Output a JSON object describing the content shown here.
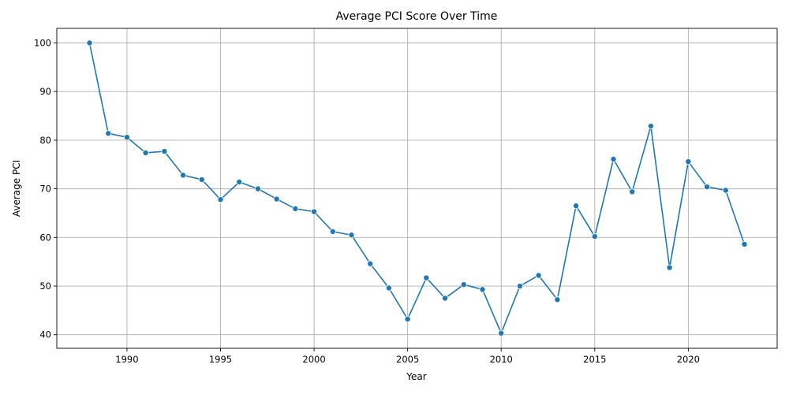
{
  "chart_data": {
    "type": "line",
    "title": "Average PCI Score Over Time",
    "xlabel": "Year",
    "ylabel": "Average PCI",
    "xlim": [
      1986.25,
      2024.75
    ],
    "ylim": [
      37.2,
      103.0
    ],
    "xticks": [
      1990,
      1995,
      2000,
      2005,
      2010,
      2015,
      2020
    ],
    "yticks": [
      40,
      50,
      60,
      70,
      80,
      90,
      100
    ],
    "grid": true,
    "legend": "none",
    "colors": {
      "line": "#1f77b4",
      "marker": "#1f77b4",
      "grid": "#b0b0b0"
    },
    "series": [
      {
        "x": [
          1988,
          1989,
          1990,
          1991,
          1992,
          1993,
          1994,
          1995,
          1996,
          1997,
          1998,
          1999,
          2000,
          2001,
          2002,
          2003,
          2004,
          2005,
          2006,
          2007,
          2008,
          2009,
          2010,
          2011,
          2012,
          2013,
          2014,
          2015,
          2016,
          2017,
          2018,
          2019,
          2020,
          2021,
          2022,
          2023
        ],
        "values": [
          100.0,
          81.4,
          80.6,
          77.4,
          77.7,
          72.8,
          71.9,
          67.8,
          71.4,
          70.0,
          67.9,
          65.9,
          65.3,
          61.2,
          60.5,
          54.6,
          49.6,
          43.2,
          51.7,
          47.5,
          50.3,
          49.3,
          40.3,
          50.0,
          52.2,
          47.2,
          66.5,
          60.2,
          76.1,
          69.4,
          82.9,
          53.8,
          75.6,
          70.4,
          69.7,
          58.6
        ]
      }
    ]
  }
}
